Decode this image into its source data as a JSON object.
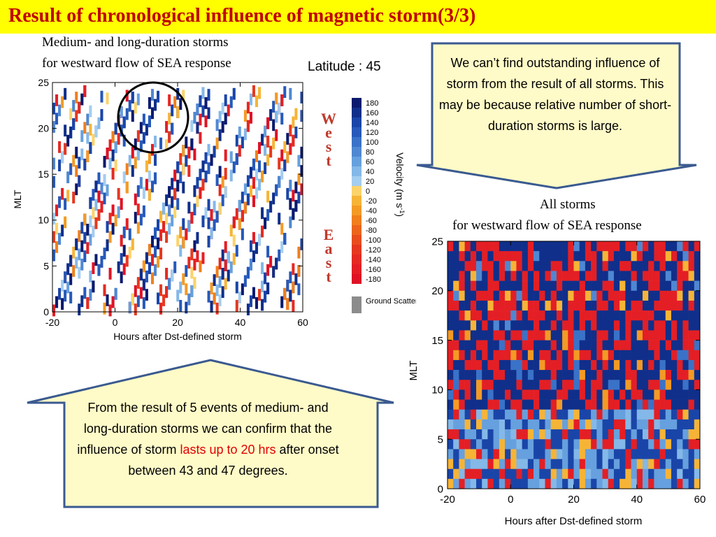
{
  "slide": {
    "title": "Result of chronological influence of magnetic storm(3/3)",
    "left_caption_line1": "Medium- and long-duration storms",
    "left_caption_line2": "for westward flow of SEA response",
    "latitude_label": "Latitude : 45",
    "right_caption_line1": "All storms",
    "right_caption_line2": "for westward flow of SEA response",
    "west_label": "West",
    "east_label": "East",
    "top_callout": "We can’t find outstanding influence of storm from the result of all storms. This may be because relative number of short-duration storms is large.",
    "bottom_callout_part1": "From the result of 5 events of medium- and long-duration storms we can confirm that the influence of storm ",
    "bottom_callout_highlight": "lasts up to 20 hrs",
    "bottom_callout_part2": " after onset between 43 and 47 degrees.",
    "colors": {
      "title_bg": "#ffff00",
      "title_text": "#c00000",
      "callout_fill": "#fffbc8",
      "callout_border": "#3a5a90",
      "highlight": "#e00000"
    }
  },
  "chart_data": [
    {
      "type": "heatmap",
      "panel": "medium-and-long-duration-storms",
      "xlabel": "Hours after Dst-defined storm",
      "ylabel": "MLT",
      "xlim": [
        -20,
        60
      ],
      "ylim": [
        0,
        25
      ],
      "x_ticks": [
        "-20",
        "0",
        "20",
        "40",
        "60"
      ],
      "y_ticks": [
        "0",
        "5",
        "10",
        "15",
        "20",
        "25"
      ],
      "pattern": "diagonal streaks: MLT increases with time since onset, wrapping 24 to 0",
      "annotation": "circle around 5-20 hrs after onset at MLT 19-24"
    },
    {
      "type": "heatmap",
      "panel": "all-storms",
      "xlabel": "Hours after Dst-defined storm",
      "ylabel": "MLT",
      "xlim": [
        -20,
        60
      ],
      "ylim": [
        0,
        25
      ],
      "x_ticks": [
        "-20",
        "0",
        "20",
        "40",
        "60"
      ],
      "y_ticks": [
        "0",
        "5",
        "10",
        "15",
        "20",
        "25"
      ],
      "pattern": "mostly westward (blue) and eastward (red) mixed; lighter blues dominate at low MLT"
    },
    {
      "type": "colorbar",
      "label": "Velocity (m s-1)",
      "ticks": [
        "180",
        "160",
        "140",
        "120",
        "100",
        "80",
        "60",
        "40",
        "20",
        "0",
        "-20",
        "-40",
        "-60",
        "-80",
        "-100",
        "-120",
        "-140",
        "-160",
        "-180"
      ],
      "colors": [
        "#0a1a6e",
        "#102f8a",
        "#1a45a8",
        "#2659ba",
        "#3a72c8",
        "#4f87d2",
        "#66a0de",
        "#84b8e8",
        "#a4cdef",
        "#fbd36a",
        "#f6b437",
        "#f39a25",
        "#f07f1c",
        "#ec651c",
        "#e84d1e",
        "#e6381f",
        "#e42a22",
        "#e31f25",
        "#e01225"
      ],
      "ground_scatter_label": "Ground Scatter",
      "ground_scatter_color": "#8c8c8c"
    }
  ]
}
